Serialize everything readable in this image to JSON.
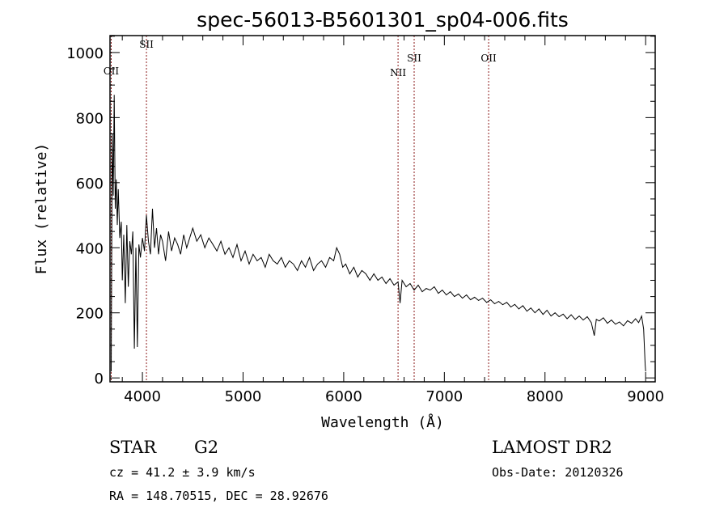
{
  "chart_data": {
    "type": "line",
    "title": "spec-56013-B5601301_sp04-006.fits",
    "xlabel": "Wavelength (Å)",
    "ylabel": "Flux (relative)",
    "xlim": [
      3678,
      9095
    ],
    "ylim": [
      -12,
      1052
    ],
    "xticks": [
      4000,
      5000,
      6000,
      7000,
      8000,
      9000
    ],
    "yticks": [
      0,
      200,
      400,
      600,
      800,
      1000
    ],
    "grid": false,
    "series": [
      {
        "name": "spectrum",
        "x": [
          3690,
          3700,
          3710,
          3720,
          3730,
          3740,
          3750,
          3760,
          3775,
          3790,
          3800,
          3815,
          3830,
          3845,
          3860,
          3875,
          3890,
          3905,
          3920,
          3935,
          3950,
          3965,
          3980,
          4000,
          4020,
          4040,
          4060,
          4080,
          4100,
          4120,
          4140,
          4160,
          4180,
          4200,
          4230,
          4260,
          4290,
          4320,
          4350,
          4380,
          4410,
          4440,
          4470,
          4500,
          4540,
          4580,
          4620,
          4660,
          4700,
          4740,
          4780,
          4820,
          4860,
          4900,
          4940,
          4980,
          5020,
          5060,
          5100,
          5140,
          5180,
          5220,
          5260,
          5300,
          5340,
          5380,
          5420,
          5460,
          5500,
          5540,
          5580,
          5620,
          5660,
          5700,
          5740,
          5780,
          5820,
          5860,
          5900,
          5930,
          5960,
          5990,
          6020,
          6060,
          6100,
          6140,
          6180,
          6220,
          6260,
          6300,
          6340,
          6380,
          6420,
          6460,
          6500,
          6540,
          6560,
          6580,
          6620,
          6660,
          6700,
          6740,
          6780,
          6820,
          6860,
          6900,
          6940,
          6980,
          7020,
          7060,
          7100,
          7140,
          7180,
          7220,
          7260,
          7300,
          7340,
          7380,
          7420,
          7460,
          7500,
          7540,
          7580,
          7620,
          7660,
          7700,
          7740,
          7780,
          7820,
          7860,
          7900,
          7940,
          7980,
          8020,
          8060,
          8100,
          8140,
          8180,
          8220,
          8260,
          8300,
          8340,
          8380,
          8420,
          8460,
          8490,
          8510,
          8540,
          8580,
          8620,
          8660,
          8700,
          8740,
          8780,
          8820,
          8860,
          8900,
          8930,
          8960,
          8980,
          8995,
          9000
        ],
        "y": [
          20,
          750,
          560,
          870,
          520,
          610,
          470,
          580,
          430,
          480,
          300,
          440,
          230,
          470,
          280,
          420,
          380,
          450,
          90,
          400,
          95,
          410,
          370,
          430,
          390,
          500,
          420,
          380,
          520,
          400,
          460,
          380,
          440,
          420,
          360,
          450,
          390,
          430,
          410,
          380,
          440,
          400,
          430,
          460,
          420,
          440,
          400,
          430,
          410,
          390,
          420,
          380,
          400,
          370,
          410,
          360,
          390,
          350,
          380,
          360,
          370,
          340,
          380,
          360,
          350,
          370,
          340,
          360,
          350,
          330,
          360,
          340,
          370,
          330,
          350,
          360,
          340,
          370,
          360,
          400,
          380,
          340,
          350,
          320,
          340,
          310,
          330,
          320,
          300,
          320,
          300,
          310,
          290,
          305,
          285,
          295,
          230,
          300,
          280,
          290,
          270,
          285,
          265,
          275,
          270,
          280,
          260,
          270,
          255,
          265,
          250,
          258,
          245,
          255,
          240,
          248,
          238,
          245,
          232,
          240,
          228,
          235,
          225,
          232,
          218,
          226,
          212,
          222,
          205,
          215,
          200,
          212,
          195,
          208,
          190,
          200,
          188,
          196,
          182,
          194,
          180,
          190,
          178,
          188,
          170,
          130,
          180,
          175,
          185,
          168,
          178,
          165,
          172,
          160,
          176,
          168,
          182,
          170,
          190,
          150,
          40,
          20
        ]
      }
    ],
    "emission_lines": [
      {
        "label": "OII",
        "x": 3690
      },
      {
        "label": "SII",
        "x": 4040
      },
      {
        "label": "NII",
        "x": 6540
      },
      {
        "label": "SII",
        "x": 6700
      },
      {
        "label": "OII",
        "x": 7440
      }
    ]
  },
  "info": {
    "object_class": "STAR",
    "subclass": "G2",
    "cz": "cz = 41.2 ± 3.9 km/s",
    "coords": "RA = 148.70515, DEC =  28.92676",
    "survey": "LAMOST DR2",
    "obs_date": "Obs-Date: 20120326"
  },
  "colors": {
    "line": "#000000",
    "marker": "#8b1a1a"
  }
}
